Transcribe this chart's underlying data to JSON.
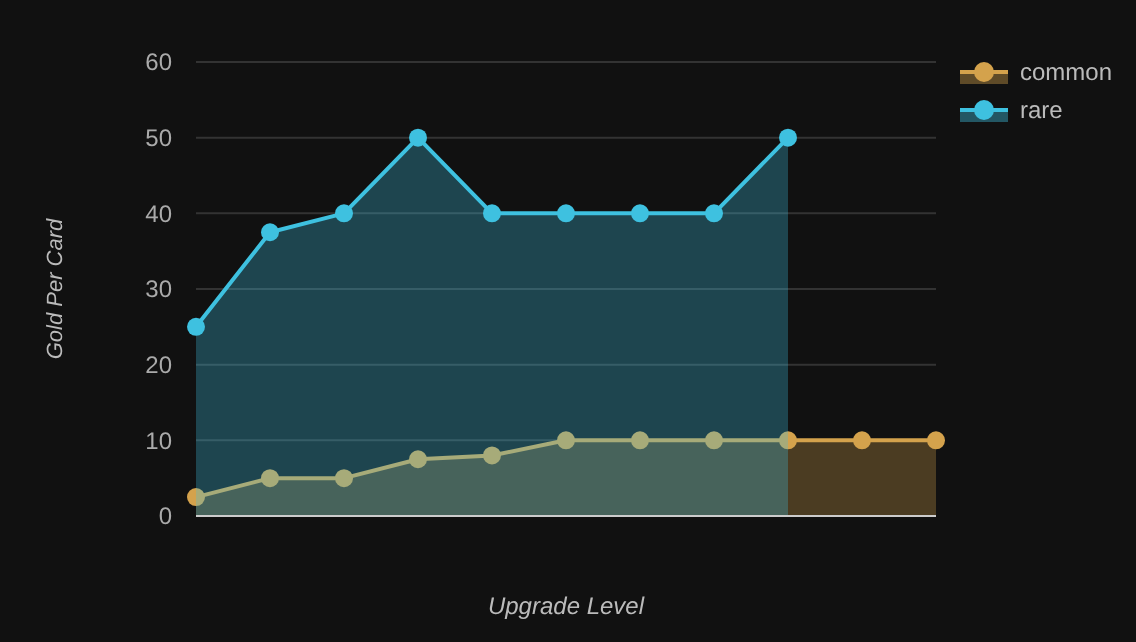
{
  "chart_data": {
    "type": "area",
    "xlabel": "Upgrade Level",
    "ylabel": "Gold Per Card",
    "categories": [
      null,
      null,
      null,
      null,
      null,
      null,
      null,
      null,
      null,
      null,
      null
    ],
    "series": [
      {
        "name": "common",
        "color": "#d4a24c",
        "values": [
          2.5,
          5,
          5,
          7.5,
          8,
          10,
          10,
          10,
          10,
          10,
          10
        ]
      },
      {
        "name": "rare",
        "color": "#3ec1e0",
        "values": [
          25,
          37.5,
          40,
          50,
          40,
          40,
          40,
          40,
          50,
          null,
          null
        ]
      }
    ],
    "ylim": [
      0,
      60
    ],
    "yticks": [
      0,
      10,
      20,
      30,
      40,
      50,
      60
    ],
    "grid": "y",
    "legend": "top right",
    "marker": "circle",
    "line_style": "solid"
  }
}
